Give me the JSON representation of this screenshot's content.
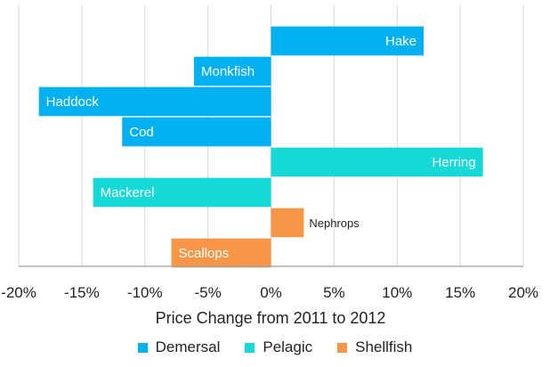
{
  "chart_data": {
    "type": "bar",
    "orientation": "horizontal",
    "categories": [
      "Hake",
      "Monkfish",
      "Haddock",
      "Cod",
      "Herring",
      "Mackerel",
      "Nephrops",
      "Scallops"
    ],
    "values": [
      12.1,
      -6.1,
      -18.4,
      -11.8,
      16.8,
      -14.1,
      2.6,
      -7.9
    ],
    "groups": [
      "Demersal",
      "Demersal",
      "Demersal",
      "Demersal",
      "Pelagic",
      "Pelagic",
      "Shellfish",
      "Shellfish"
    ],
    "xlabel": "Price Change from 2011 to 2012",
    "xlim": [
      -20,
      20
    ],
    "xtick_labels": [
      "-20%",
      "-15%",
      "-10%",
      "-5%",
      "0%",
      "5%",
      "10%",
      "15%",
      "20%"
    ],
    "grid": "vertical",
    "legend_position": "bottom",
    "legend": [
      {
        "name": "Demersal",
        "color": "#00b0f0"
      },
      {
        "name": "Pelagic",
        "color": "#14d9d6"
      },
      {
        "name": "Shellfish",
        "color": "#f79646"
      }
    ]
  }
}
